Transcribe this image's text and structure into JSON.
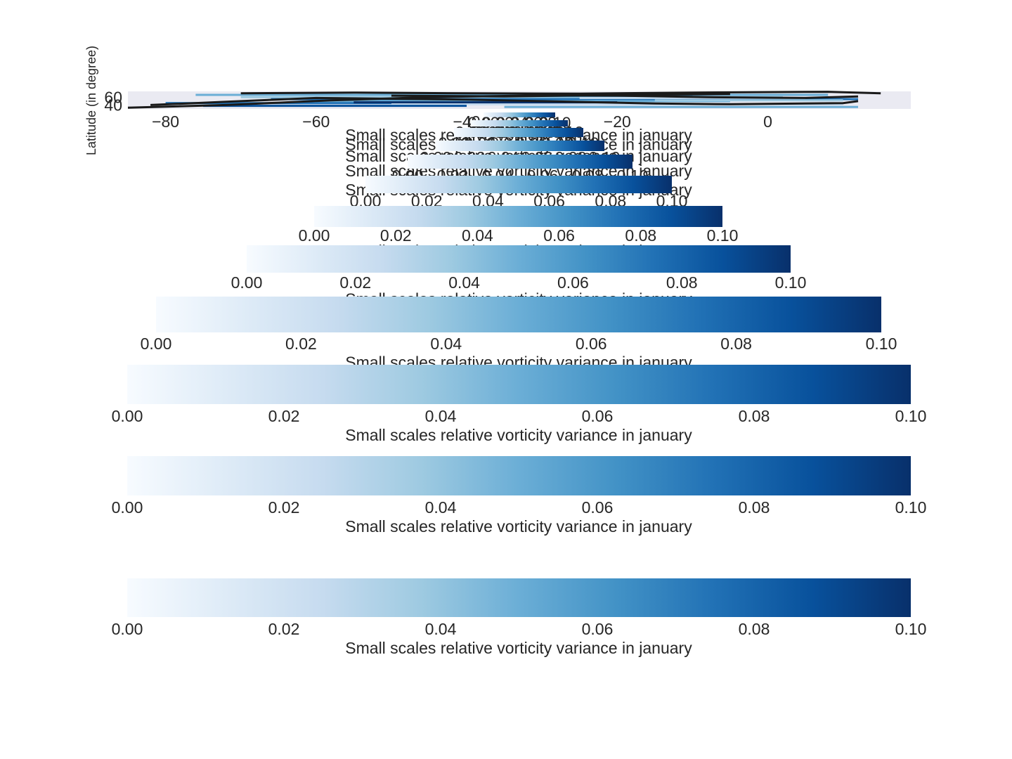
{
  "chart_data": {
    "type": "heatmap",
    "title": "",
    "map": {
      "xlabel": "",
      "ylabel": "Latitude (in degree)",
      "x_ticks": [
        "−80",
        "−60",
        "−40",
        "−20",
        "0"
      ],
      "x_tick_values": [
        -80,
        -60,
        -40,
        -20,
        0
      ],
      "y_ticks": [
        "60",
        "40"
      ],
      "y_tick_values": [
        60,
        40
      ],
      "xlim": [
        -85,
        19
      ],
      "ylim": [
        30,
        75
      ],
      "background": "#eaeaf2",
      "coastline_color": "#1a1a1a"
    },
    "colorbar": {
      "colormap": "Blues",
      "colors": [
        "#f7fbff",
        "#deebf7",
        "#c6dbef",
        "#9ecae1",
        "#6baed6",
        "#4292c6",
        "#2171b5",
        "#08519c",
        "#08306b"
      ],
      "range": [
        0.0,
        0.1
      ],
      "ticks": [
        "0.00",
        "0.02",
        "0.04",
        "0.06",
        "0.08",
        "0.10"
      ],
      "tick_values": [
        0.0,
        0.02,
        0.04,
        0.06,
        0.08,
        0.1
      ],
      "label": "Small scales relative vorticity variance in january",
      "repeat_count": 12
    }
  }
}
